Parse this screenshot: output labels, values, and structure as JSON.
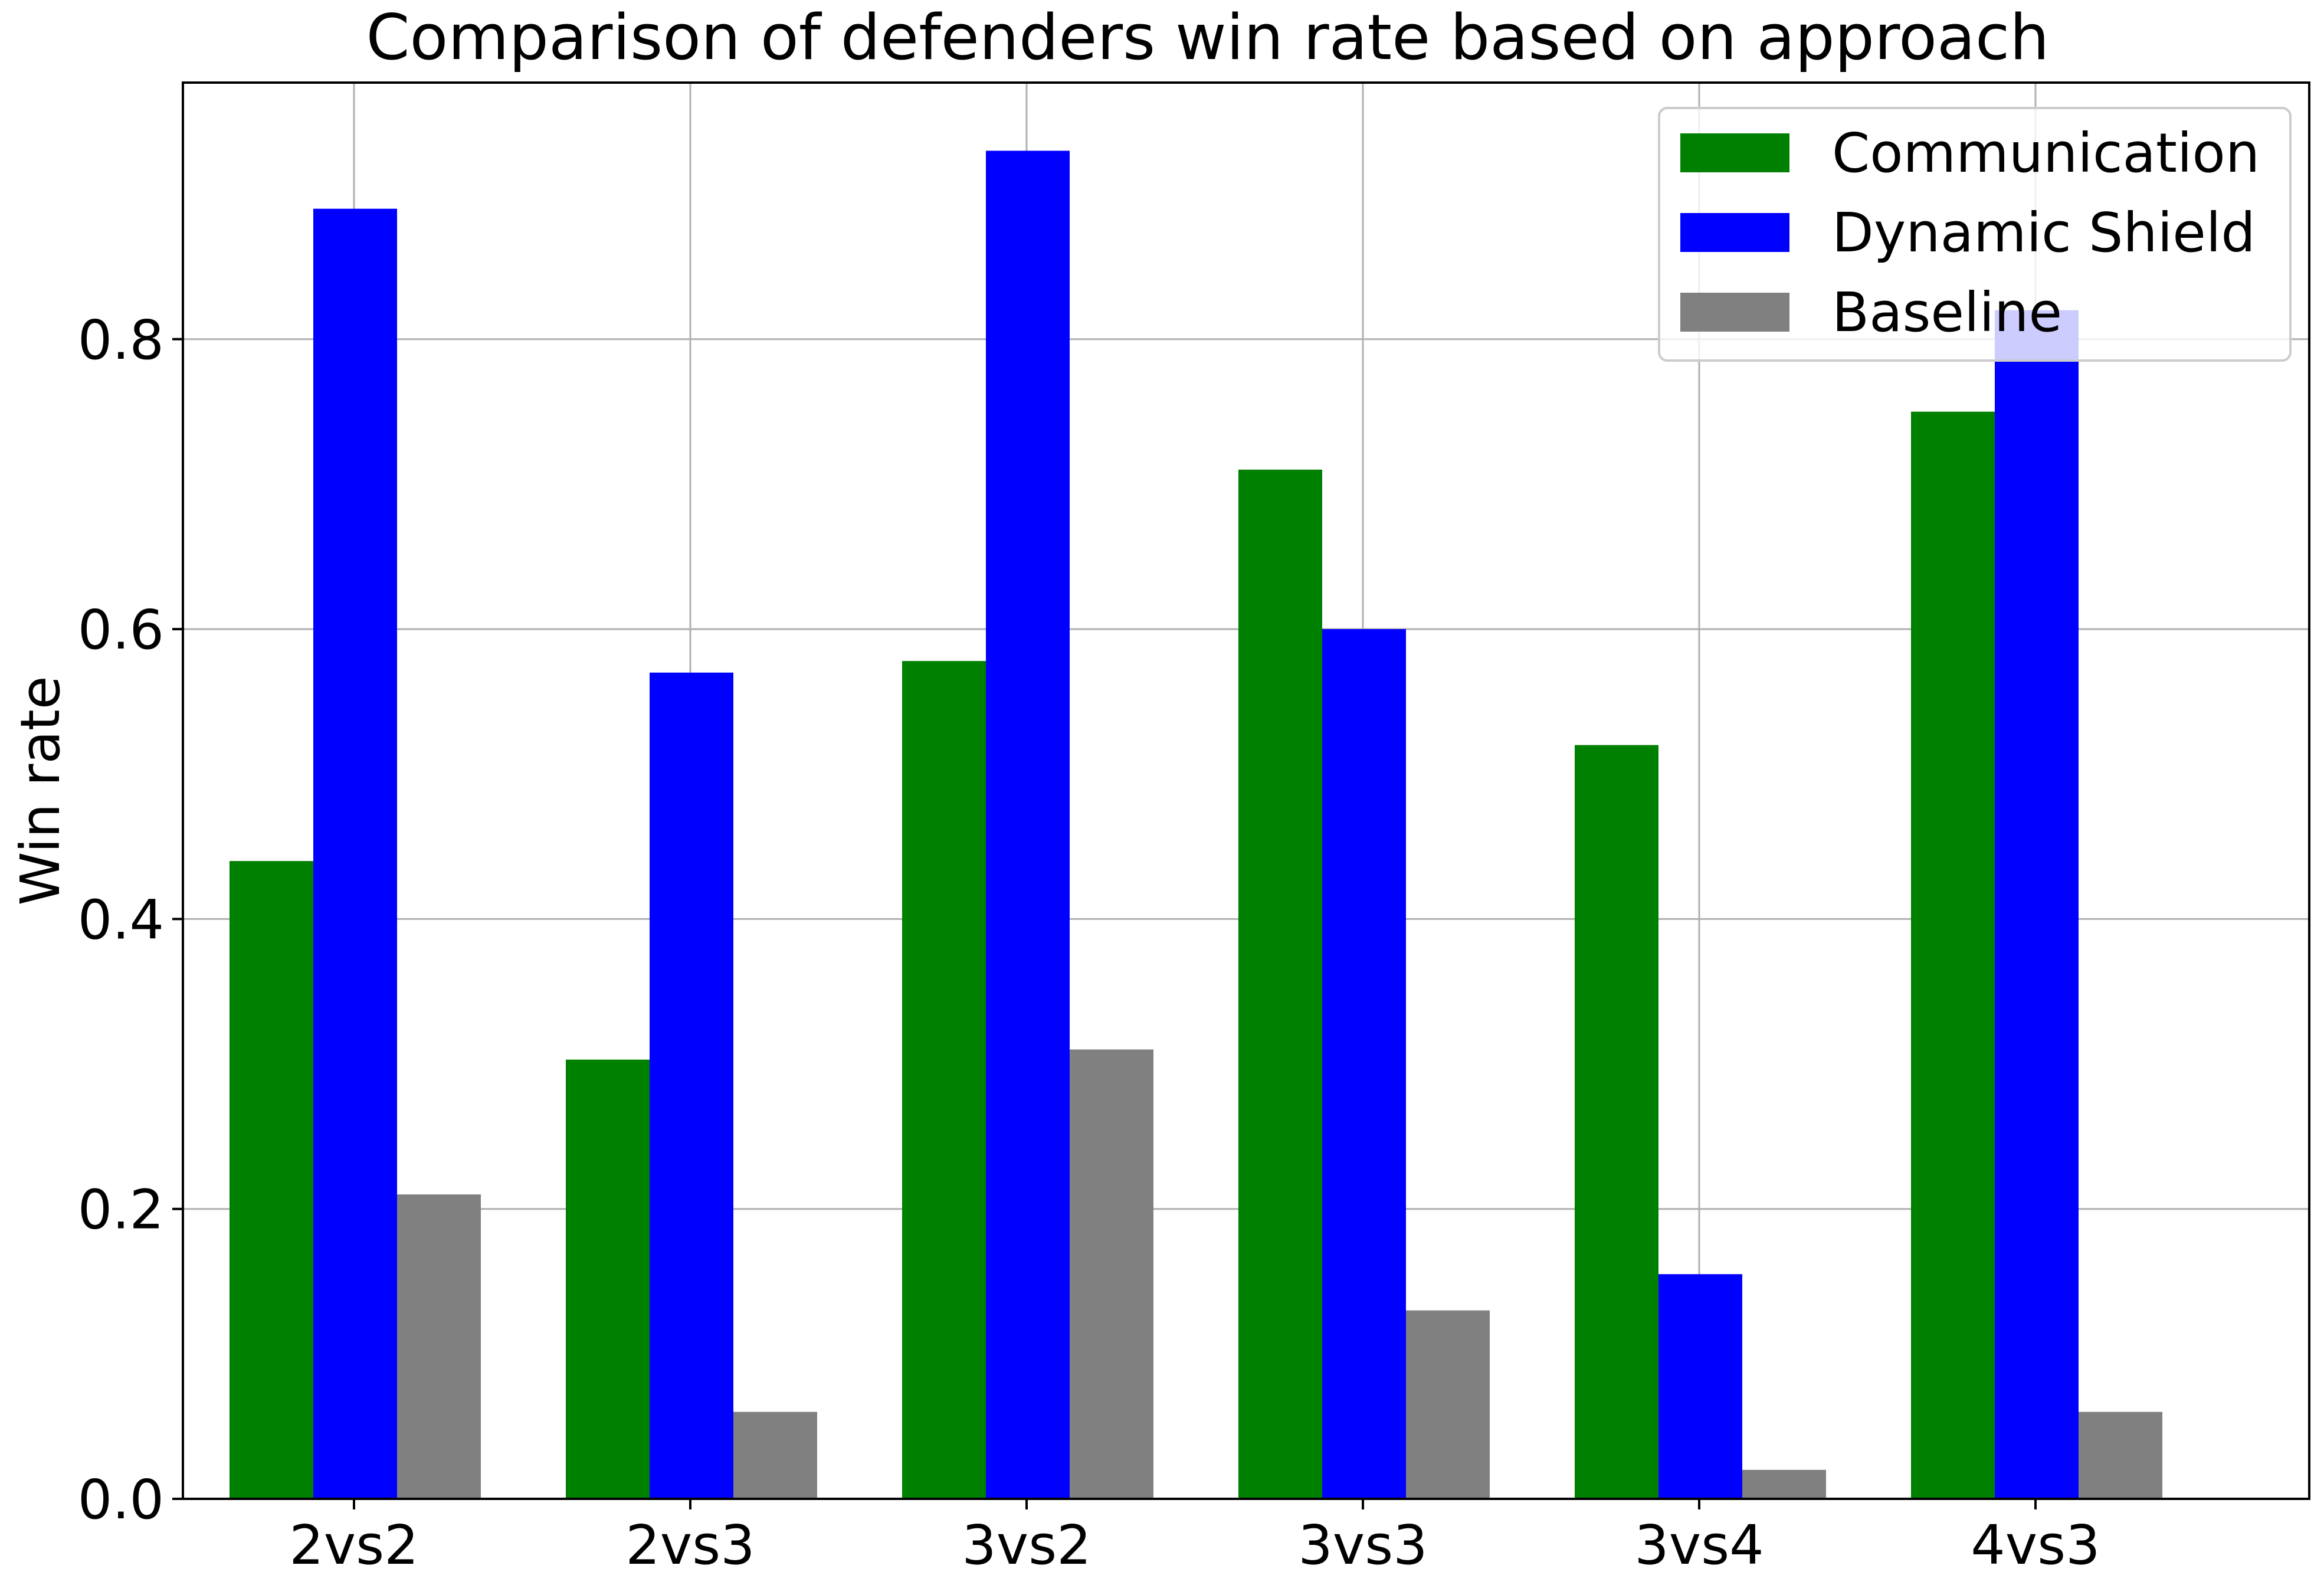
{
  "chart_data": {
    "type": "bar",
    "title": "Comparison of defenders win rate based on approach",
    "xlabel": "",
    "ylabel": "Win rate",
    "categories": [
      "2vs2",
      "2vs3",
      "3vs2",
      "3vs3",
      "3vs4",
      "4vs3"
    ],
    "series": [
      {
        "name": "Communication",
        "color": "#008000",
        "values": [
          0.44,
          0.303,
          0.578,
          0.71,
          0.52,
          0.75
        ]
      },
      {
        "name": "Dynamic Shield",
        "color": "#0000ff",
        "values": [
          0.89,
          0.57,
          0.93,
          0.6,
          0.155,
          0.82
        ]
      },
      {
        "name": "Baseline",
        "color": "#808080",
        "values": [
          0.21,
          0.06,
          0.31,
          0.13,
          0.02,
          0.06
        ]
      }
    ],
    "ylim": [
      0,
      0.977
    ],
    "yticks": [
      0.0,
      0.2,
      0.4,
      0.6,
      0.8
    ],
    "ytick_labels": [
      "0.0",
      "0.2",
      "0.4",
      "0.6",
      "0.8"
    ],
    "grid": true,
    "legend_position": "top-right"
  }
}
